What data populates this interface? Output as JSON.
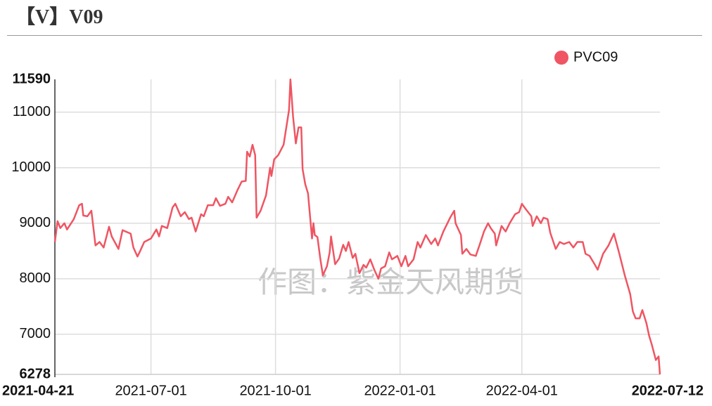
{
  "header": {
    "title": "【V】V09"
  },
  "chart_data": {
    "type": "line",
    "watermark": "作图：紫金天风期货",
    "x": [
      "2021-04-21",
      "2021-04-23",
      "2021-04-25",
      "2021-04-28",
      "2021-04-30",
      "2021-05-05",
      "2021-05-09",
      "2021-05-11",
      "2021-05-12",
      "2021-05-15",
      "2021-05-18",
      "2021-05-21",
      "2021-05-24",
      "2021-05-27",
      "2021-05-31",
      "2021-06-02",
      "2021-06-07",
      "2021-06-10",
      "2021-06-16",
      "2021-06-18",
      "2021-06-21",
      "2021-06-23",
      "2021-06-26",
      "2021-07-01",
      "2021-07-05",
      "2021-07-07",
      "2021-07-09",
      "2021-07-13",
      "2021-07-17",
      "2021-07-19",
      "2021-07-23",
      "2021-07-26",
      "2021-07-29",
      "2021-07-31",
      "2021-08-03",
      "2021-08-07",
      "2021-08-09",
      "2021-08-12",
      "2021-08-16",
      "2021-08-18",
      "2021-08-21",
      "2021-08-25",
      "2021-08-27",
      "2021-08-30",
      "2021-09-03",
      "2021-09-06",
      "2021-09-09",
      "2021-09-10",
      "2021-09-12",
      "2021-09-14",
      "2021-09-16",
      "2021-09-17",
      "2021-09-20",
      "2021-09-24",
      "2021-09-27",
      "2021-09-28",
      "2021-09-30",
      "2021-10-03",
      "2021-10-07",
      "2021-10-11",
      "2021-10-12",
      "2021-10-14",
      "2021-10-16",
      "2021-10-18",
      "2021-10-20",
      "2021-10-21",
      "2021-10-23",
      "2021-10-25",
      "2021-10-28",
      "2021-10-29",
      "2021-10-30",
      "2021-11-01",
      "2021-11-03",
      "2021-11-05",
      "2021-11-08",
      "2021-11-10",
      "2021-11-11",
      "2021-11-14",
      "2021-11-17",
      "2021-11-20",
      "2021-11-22",
      "2021-11-24",
      "2021-11-27",
      "2021-11-29",
      "2021-12-02",
      "2021-12-05",
      "2021-12-07",
      "2021-12-10",
      "2021-12-13",
      "2021-12-16",
      "2021-12-18",
      "2021-12-21",
      "2021-12-24",
      "2021-12-26",
      "2021-12-30",
      "2022-01-02",
      "2022-01-05",
      "2022-01-07",
      "2022-01-11",
      "2022-01-14",
      "2022-01-16",
      "2022-01-20",
      "2022-01-24",
      "2022-01-27",
      "2022-01-29",
      "2022-02-02",
      "2022-02-07",
      "2022-02-10",
      "2022-02-11",
      "2022-02-15",
      "2022-02-16",
      "2022-02-19",
      "2022-02-22",
      "2022-02-26",
      "2022-03-01",
      "2022-03-04",
      "2022-03-07",
      "2022-03-09",
      "2022-03-12",
      "2022-03-13",
      "2022-03-17",
      "2022-03-20",
      "2022-03-23",
      "2022-03-27",
      "2022-03-30",
      "2022-04-01",
      "2022-04-04",
      "2022-04-08",
      "2022-04-09",
      "2022-04-12",
      "2022-04-15",
      "2022-04-17",
      "2022-04-20",
      "2022-04-22",
      "2022-04-26",
      "2022-04-29",
      "2022-05-02",
      "2022-05-06",
      "2022-05-09",
      "2022-05-12",
      "2022-05-16",
      "2022-05-18",
      "2022-05-21",
      "2022-05-25",
      "2022-05-27",
      "2022-05-31",
      "2022-06-04",
      "2022-06-08",
      "2022-06-12",
      "2022-06-16",
      "2022-06-20",
      "2022-06-22",
      "2022-06-24",
      "2022-06-27",
      "2022-06-29",
      "2022-07-02",
      "2022-07-04",
      "2022-07-06",
      "2022-07-09",
      "2022-07-11",
      "2022-07-12"
    ],
    "series": [
      {
        "name": "PVC09",
        "color": "#ef5562",
        "values": [
          8662,
          9037,
          8912,
          9000,
          8887,
          9075,
          9325,
          9350,
          9137,
          9125,
          9225,
          8600,
          8662,
          8562,
          8937,
          8762,
          8537,
          8875,
          8812,
          8562,
          8400,
          8500,
          8662,
          8725,
          8887,
          8762,
          8950,
          8912,
          9287,
          9350,
          9125,
          9200,
          9075,
          9100,
          8850,
          9162,
          9125,
          9325,
          9325,
          9450,
          9312,
          9350,
          9475,
          9375,
          9600,
          9750,
          9762,
          10287,
          10200,
          10412,
          10225,
          9100,
          9225,
          9500,
          10000,
          9850,
          10150,
          10225,
          10412,
          11037,
          11590,
          10912,
          10437,
          10725,
          10725,
          9975,
          9700,
          9537,
          8725,
          9000,
          8787,
          8750,
          8375,
          8062,
          8225,
          8475,
          8762,
          8262,
          8362,
          8612,
          8500,
          8662,
          8375,
          8450,
          8100,
          8250,
          8200,
          8350,
          8162,
          8000,
          8187,
          8225,
          8475,
          8350,
          8412,
          8225,
          8412,
          8225,
          8350,
          8662,
          8562,
          8787,
          8625,
          8725,
          8600,
          8850,
          9100,
          9225,
          9000,
          8787,
          8450,
          8537,
          8437,
          8412,
          8625,
          8850,
          9000,
          8912,
          8812,
          8600,
          8950,
          8850,
          9000,
          9162,
          9200,
          9350,
          9250,
          9125,
          8950,
          9125,
          9000,
          9100,
          9075,
          8825,
          8537,
          8662,
          8625,
          8662,
          8562,
          8662,
          8662,
          8450,
          8412,
          8250,
          8162,
          8450,
          8600,
          8812,
          8450,
          8062,
          7725,
          7412,
          7287,
          7287,
          7437,
          7200,
          6975,
          6812,
          6537,
          6600,
          6278
        ]
      }
    ],
    "xlim": [
      "2021-04-21",
      "2022-07-12"
    ],
    "xticks": [
      "2021-04-21",
      "2021-07-01",
      "2021-10-01",
      "2022-01-01",
      "2022-04-01",
      "2022-07-12"
    ],
    "ylim": [
      6278,
      11590
    ],
    "yticks": [
      6278,
      7000,
      8000,
      9000,
      10000,
      11000,
      11590
    ],
    "grid": true,
    "legend": "top-right"
  }
}
